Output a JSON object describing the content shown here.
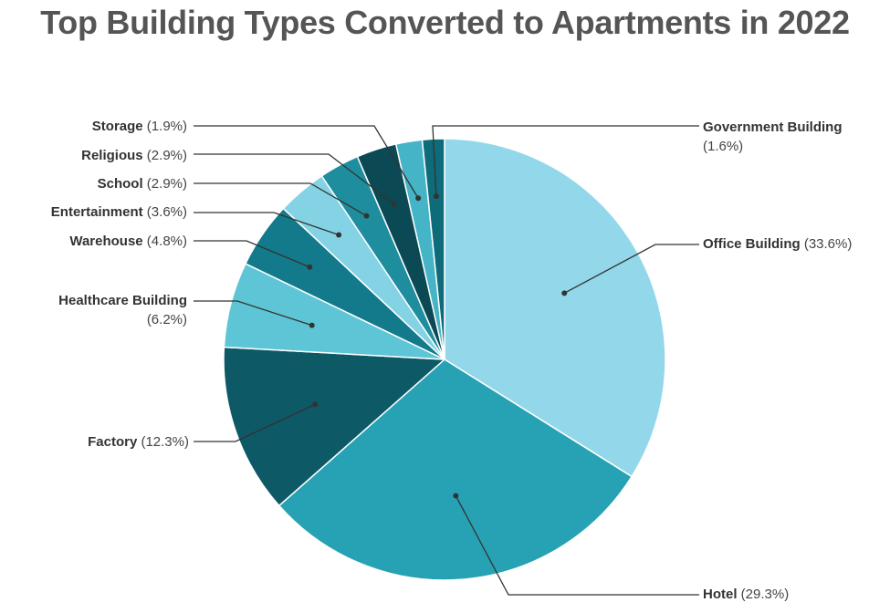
{
  "chart_data": {
    "type": "pie",
    "title": "Top Building Types Converted to Apartments in 2022",
    "slices": [
      {
        "name": "Office Building",
        "value": 33.6,
        "label_pct": "(33.6%)",
        "color": "#93d8ea"
      },
      {
        "name": "Hotel",
        "value": 29.3,
        "label_pct": "(29.3%)",
        "color": "#27a2b4"
      },
      {
        "name": "Factory",
        "value": 12.3,
        "label_pct": "(12.3%)",
        "color": "#0d5966"
      },
      {
        "name": "Healthcare Building",
        "value": 6.2,
        "label_pct": "(6.2%)",
        "color": "#5ec5d6"
      },
      {
        "name": "Warehouse",
        "value": 4.8,
        "label_pct": "(4.8%)",
        "color": "#137a8b"
      },
      {
        "name": "Entertainment",
        "value": 3.6,
        "label_pct": "(3.6%)",
        "color": "#84d3e4"
      },
      {
        "name": "School",
        "value": 2.9,
        "label_pct": "(2.9%)",
        "color": "#1e8e9e"
      },
      {
        "name": "Religious",
        "value": 2.9,
        "label_pct": "(2.9%)",
        "color": "#0b4a55"
      },
      {
        "name": "Storage",
        "value": 1.9,
        "label_pct": "(1.9%)",
        "color": "#45b4c6"
      },
      {
        "name": "Government Building",
        "value": 1.6,
        "label_pct": "(1.6%)",
        "color": "#0e6b7a"
      }
    ]
  }
}
